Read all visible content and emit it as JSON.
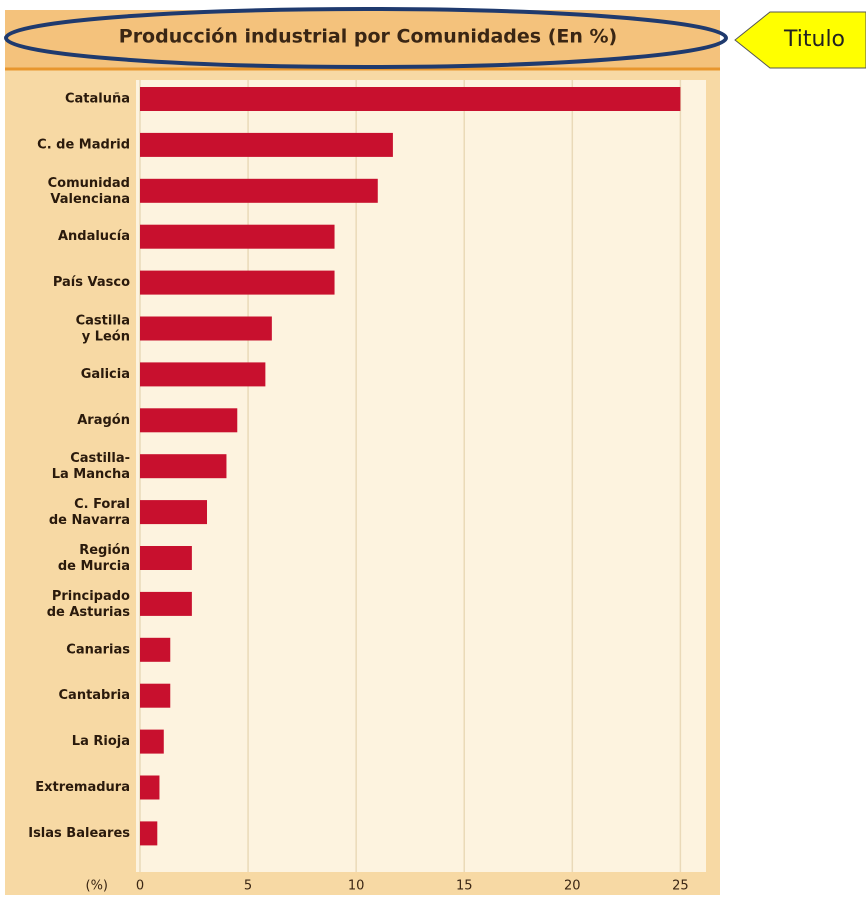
{
  "chart_data": {
    "type": "bar",
    "orientation": "horizontal",
    "title": "Producción industrial por Comunidades (En %)",
    "annotation": "Titulo",
    "x_label": "(%)",
    "categories": [
      "Cataluña",
      "C. de Madrid",
      "Comunidad\nValenciana",
      "Andalucía",
      "País Vasco",
      "Castilla\ny León",
      "Galicia",
      "Aragón",
      "Castilla-\nLa Mancha",
      "C. Foral\nde Navarra",
      "Región\nde Murcia",
      "Principado\nde Asturias",
      "Canarias",
      "Cantabria",
      "La Rioja",
      "Extremadura",
      "Islas Baleares"
    ],
    "values": [
      25,
      11.7,
      11,
      9,
      9,
      6.1,
      5.8,
      4.5,
      4,
      3.1,
      2.4,
      2.4,
      1.4,
      1.4,
      1.1,
      0.9,
      0.8
    ],
    "color": "#c8102e",
    "xlim": [
      0,
      26
    ],
    "xticks": [
      0,
      5,
      10,
      15,
      20,
      25
    ],
    "grid": true
  }
}
